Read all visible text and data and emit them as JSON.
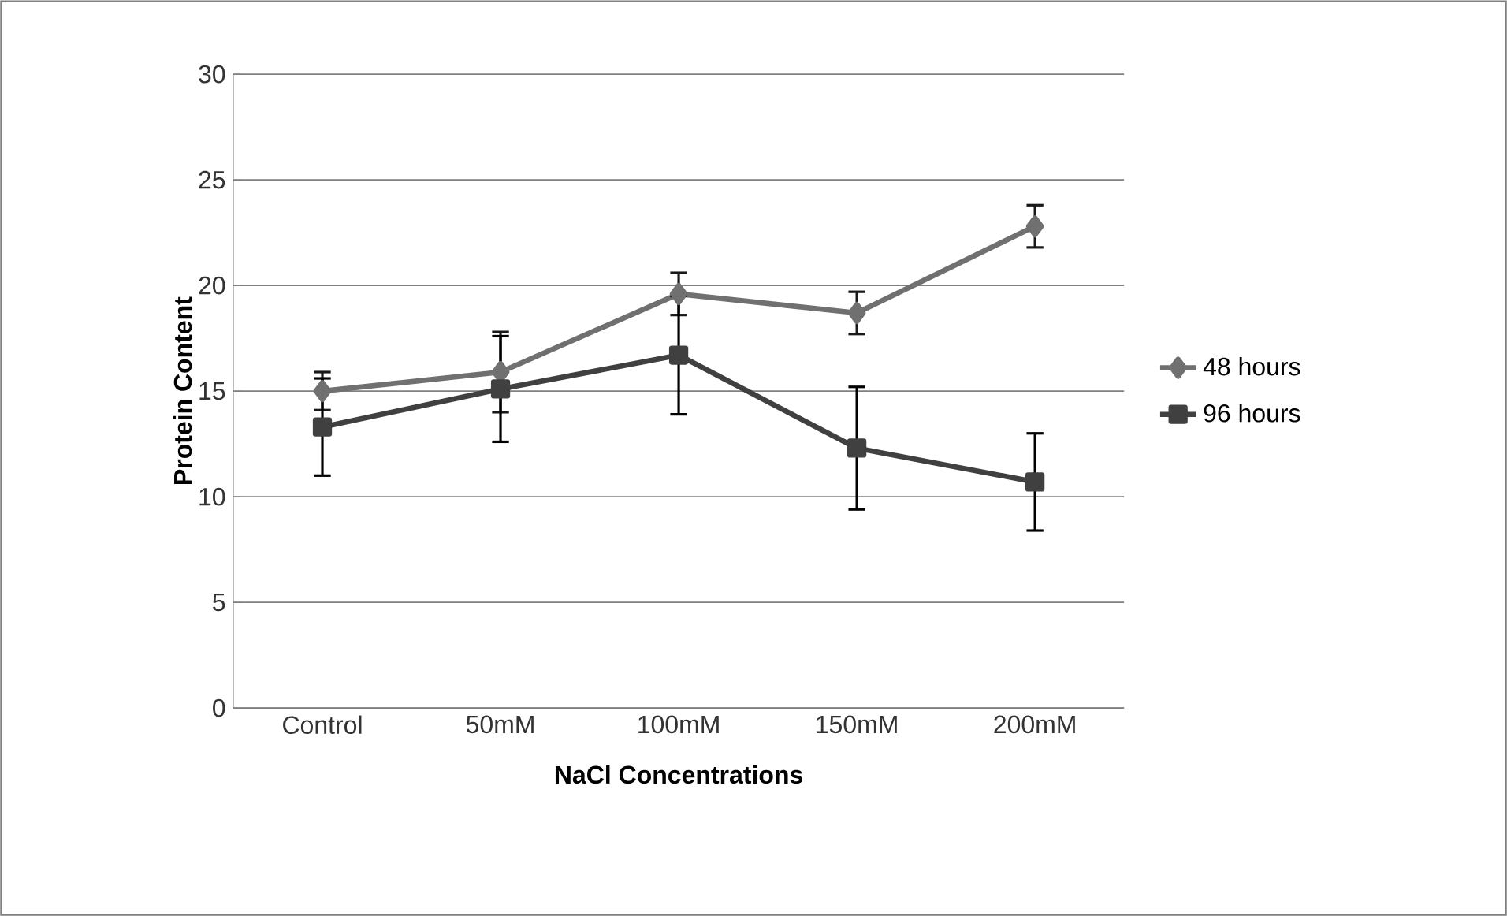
{
  "chart_data": {
    "type": "line",
    "xlabel": "NaCl Concentrations",
    "ylabel": "Protein  Content",
    "categories": [
      "Control",
      "50mM",
      "100mM",
      "150mM",
      "200mM"
    ],
    "series": [
      {
        "name": "48 hours",
        "color": "#707070",
        "marker": "diamond",
        "values": [
          15.0,
          15.9,
          19.6,
          18.7,
          22.8
        ],
        "errors": [
          0.9,
          1.9,
          1.0,
          1.0,
          1.0
        ]
      },
      {
        "name": "96 hours",
        "color": "#404040",
        "marker": "square",
        "values": [
          13.3,
          15.1,
          16.7,
          12.3,
          10.7
        ],
        "errors": [
          2.3,
          2.5,
          2.8,
          2.9,
          2.3
        ]
      }
    ],
    "ylim": [
      0,
      30
    ],
    "yticks": [
      0,
      5,
      10,
      15,
      20,
      25,
      30
    ],
    "grid": "y",
    "legend": "right"
  }
}
